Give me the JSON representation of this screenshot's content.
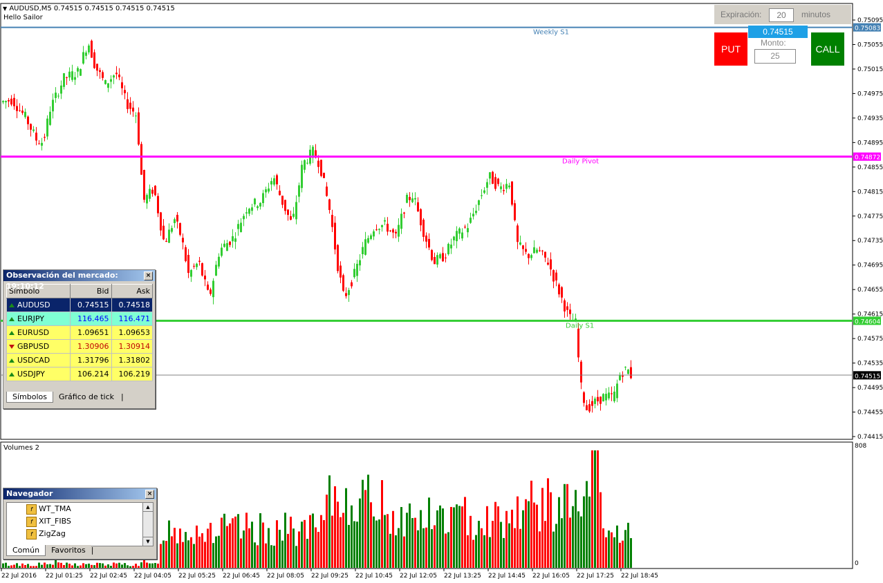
{
  "chart": {
    "header": "AUDUSD,M5  0.74515 0.74515 0.74515 0.74515",
    "subheader": "Hello Sailor",
    "volumes_label": "Volumes 2",
    "volume_max_label": "808",
    "volume_min_label": "0"
  },
  "price_axis": [
    "0.75095",
    "0.75055",
    "0.75015",
    "0.74975",
    "0.74935",
    "0.74895",
    "0.74855",
    "0.74815",
    "0.74775",
    "0.74735",
    "0.74695",
    "0.74655",
    "0.74615",
    "0.74575",
    "0.74535",
    "0.74495",
    "0.74455",
    "0.74415"
  ],
  "time_axis": [
    "22 Jul 2016",
    "22 Jul 01:25",
    "22 Jul 02:45",
    "22 Jul 04:05",
    "22 Jul 05:25",
    "22 Jul 06:45",
    "22 Jul 08:05",
    "22 Jul 09:25",
    "22 Jul 10:45",
    "22 Jul 12:05",
    "22 Jul 13:25",
    "22 Jul 14:45",
    "22 Jul 16:05",
    "22 Jul 17:25",
    "22 Jul 18:45"
  ],
  "levels": [
    {
      "name": "Weekly S1",
      "price": 0.75083,
      "label_price": "0.75083",
      "color": "#4682b4"
    },
    {
      "name": "Daily Pivot",
      "price": 0.74872,
      "label_price": "0.74872",
      "color": "#ff00ff"
    },
    {
      "name": "Daily S1",
      "price": 0.74604,
      "label_price": "0.74604",
      "color": "#32cd32"
    }
  ],
  "current_price": {
    "value": 0.74515,
    "label": "0.74515"
  },
  "trade_panel": {
    "expiration_label": "Expiración:",
    "expiration_value": "20",
    "expiration_unit": "minutos",
    "price": "0.74515",
    "amount_label": "Monto:",
    "amount_value": "25",
    "put_label": "PUT",
    "call_label": "CALL",
    "put_color": "#ff0000",
    "call_color": "#008000"
  },
  "market_watch": {
    "title": "Observación del mercado: 19:10:12",
    "columns": [
      "Símbolo",
      "Bid",
      "Ask"
    ],
    "rows": [
      {
        "symbol": "AUDUSD",
        "bid": "0.74515",
        "ask": "0.74518",
        "dir": "up"
      },
      {
        "symbol": "EURJPY",
        "bid": "116.465",
        "ask": "116.471",
        "dir": "up"
      },
      {
        "symbol": "EURUSD",
        "bid": "1.09651",
        "ask": "1.09653",
        "dir": "up"
      },
      {
        "symbol": "GBPUSD",
        "bid": "1.30906",
        "ask": "1.30914",
        "dir": "down"
      },
      {
        "symbol": "USDCAD",
        "bid": "1.31796",
        "ask": "1.31802",
        "dir": "up"
      },
      {
        "symbol": "USDJPY",
        "bid": "106.214",
        "ask": "106.219",
        "dir": "up"
      }
    ],
    "tabs": [
      "Símbolos",
      "Gráfico de tick"
    ]
  },
  "navigator": {
    "title": "Navegador",
    "items": [
      "WT_TMA",
      "XIT_FIBS",
      "ZigZag"
    ],
    "tabs": [
      "Común",
      "Favoritos"
    ]
  }
}
